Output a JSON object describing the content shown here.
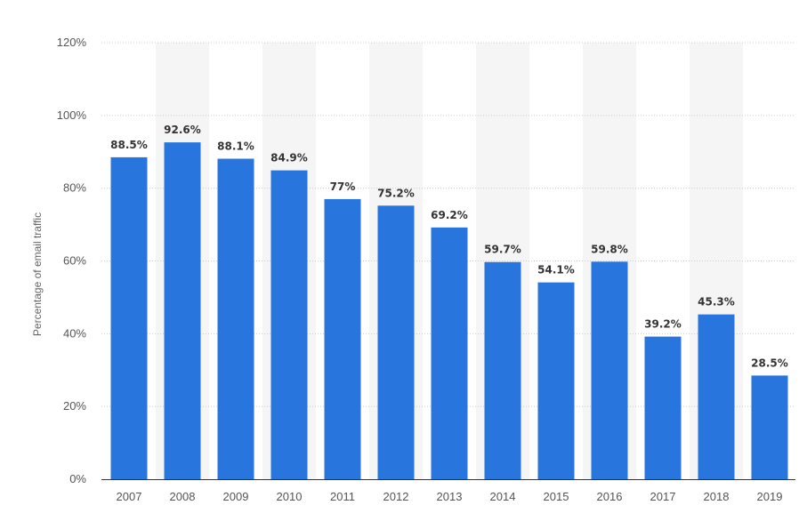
{
  "chart_data": {
    "type": "bar",
    "categories": [
      "2007",
      "2008",
      "2009",
      "2010",
      "2011",
      "2012",
      "2013",
      "2014",
      "2015",
      "2016",
      "2017",
      "2018",
      "2019"
    ],
    "values": [
      88.5,
      92.6,
      88.1,
      84.9,
      77,
      75.2,
      69.2,
      59.7,
      54.1,
      59.8,
      39.2,
      45.3,
      28.5
    ],
    "data_labels": [
      "88.5%",
      "92.6%",
      "88.1%",
      "84.9%",
      "77%",
      "75.2%",
      "69.2%",
      "59.7%",
      "54.1%",
      "59.8%",
      "39.2%",
      "45.3%",
      "28.5%"
    ],
    "title": "",
    "xlabel": "",
    "ylabel": "Percentage of email traffic",
    "ylim": [
      0,
      120
    ],
    "yticks": [
      0,
      20,
      40,
      60,
      80,
      100,
      120
    ],
    "ytick_labels": [
      "0%",
      "20%",
      "40%",
      "60%",
      "80%",
      "100%",
      "120%"
    ],
    "grid": true,
    "colors": {
      "bar": "#2876dd",
      "grid": "#cccccc",
      "band": "#f5f5f5",
      "axis": "#333333"
    }
  }
}
